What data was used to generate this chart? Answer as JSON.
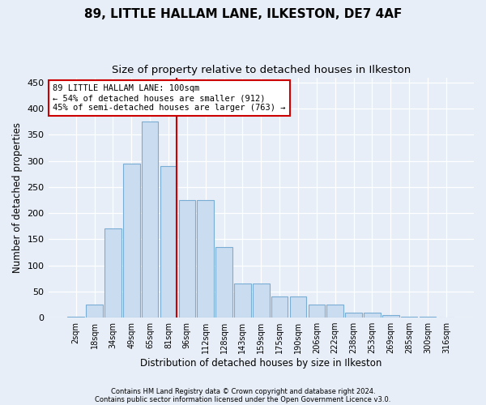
{
  "title1": "89, LITTLE HALLAM LANE, ILKESTON, DE7 4AF",
  "title2": "Size of property relative to detached houses in Ilkeston",
  "xlabel": "Distribution of detached houses by size in Ilkeston",
  "ylabel": "Number of detached properties",
  "categories": [
    "2sqm",
    "18sqm",
    "34sqm",
    "49sqm",
    "65sqm",
    "81sqm",
    "96sqm",
    "112sqm",
    "128sqm",
    "143sqm",
    "159sqm",
    "175sqm",
    "190sqm",
    "206sqm",
    "222sqm",
    "238sqm",
    "253sqm",
    "269sqm",
    "285sqm",
    "300sqm",
    "316sqm"
  ],
  "bar_values": [
    1,
    25,
    170,
    295,
    375,
    290,
    225,
    225,
    135,
    65,
    65,
    40,
    40,
    25,
    25,
    10,
    10,
    5,
    2,
    1,
    0
  ],
  "bar_color": "#c9dcf0",
  "bar_edge_color": "#7aadd4",
  "vline_color": "#cc0000",
  "annotation_text": "89 LITTLE HALLAM LANE: 100sqm\n← 54% of detached houses are smaller (912)\n45% of semi-detached houses are larger (763) →",
  "annotation_box_color": "#ffffff",
  "annotation_box_edge": "#cc0000",
  "ylim": [
    0,
    460
  ],
  "yticks": [
    0,
    50,
    100,
    150,
    200,
    250,
    300,
    350,
    400,
    450
  ],
  "footnote1": "Contains HM Land Registry data © Crown copyright and database right 2024.",
  "footnote2": "Contains public sector information licensed under the Open Government Licence v3.0.",
  "bg_color": "#e8eef7",
  "plot_bg_color": "#e8eef7",
  "grid_color": "#ffffff",
  "title1_fontsize": 11,
  "title2_fontsize": 9.5,
  "xlabel_fontsize": 8.5,
  "ylabel_fontsize": 8.5
}
